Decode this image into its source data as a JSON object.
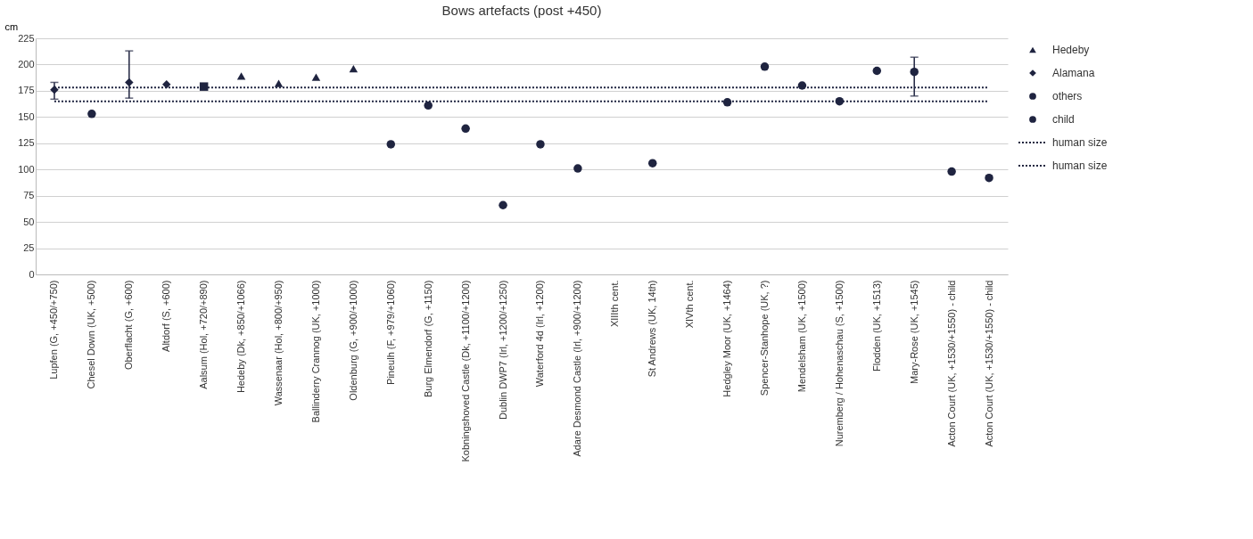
{
  "chart_data": {
    "type": "scatter",
    "title": "Bows artefacts (post +450)",
    "ylabel": "cm",
    "categories": [
      "Lupfen (G, +450/+750)",
      "Chesel Down (UK, +500)",
      "Oberflacht (G, +600)",
      "Altdorf (S, +600)",
      "Aalsum (Hol, +720/+890)",
      "Hedeby (Dk, +850/+1066)",
      "Wassenaar (Hol, +800/+950)",
      "Ballinderry Crannog (UK, +1000)",
      "Oldenburg (G, +900/+1000)",
      "Pineulh (F, +979/+1060)",
      "Burg Elmendorf (G, +1150)",
      "Kobningshoved Castle  (Dk, +1100/+1200)",
      "Dublin DWP7 (Irl, +1200/+1250)",
      "Waterford 4d (Irl, +1200)",
      "Adare Desmond Castle (Irl, +900/+1200)",
      "XIIIth cent.",
      "St Andrews (UK, 14th)",
      "XIVth cent.",
      "Hedgley Moor (UK, +1464)",
      "Spencer-Stanhope (UK, ?)",
      "Mendelsham (UK, +1500)",
      "Nuremberg / Hohenaschau (S, +1500)",
      "Flodden (UK, +1513)",
      "Mary-Rose (UK, +1545)",
      "Acton Court (UK, +1530/+1550) - child",
      "Acton Court (UK, +1530/+1550) - child"
    ],
    "series": [
      {
        "name": "Hedeby",
        "marker": "triangle",
        "color": "#1f2440",
        "values": [
          null,
          null,
          null,
          null,
          null,
          189,
          182,
          188,
          196,
          null,
          null,
          null,
          null,
          null,
          null,
          null,
          null,
          null,
          null,
          null,
          null,
          null,
          null,
          null,
          null,
          null
        ]
      },
      {
        "name": "Alamana",
        "marker": "diamond",
        "color": "#1f2440",
        "values": [
          176,
          null,
          183,
          181,
          null,
          null,
          null,
          null,
          null,
          null,
          null,
          null,
          null,
          null,
          null,
          null,
          null,
          null,
          null,
          null,
          null,
          null,
          null,
          null,
          null,
          null
        ],
        "errors": [
          [
            167,
            183
          ],
          null,
          [
            168,
            213
          ],
          null,
          null,
          null,
          null,
          null,
          null,
          null,
          null,
          null,
          null,
          null,
          null,
          null,
          null,
          null,
          null,
          null,
          null,
          null,
          null,
          null,
          null,
          null
        ]
      },
      {
        "name": "others",
        "marker": "circle",
        "color": "#1f2440",
        "values": [
          null,
          153,
          null,
          null,
          null,
          null,
          null,
          null,
          null,
          124,
          161,
          139,
          66,
          124,
          101,
          null,
          null,
          null,
          164,
          198,
          180,
          165,
          194,
          193,
          null,
          null
        ],
        "errors": [
          null,
          null,
          null,
          null,
          null,
          null,
          null,
          null,
          null,
          null,
          null,
          null,
          null,
          null,
          null,
          null,
          null,
          null,
          null,
          null,
          null,
          null,
          null,
          [
            170,
            207
          ],
          null,
          null
        ]
      },
      {
        "name": "child",
        "marker": "circle",
        "color": "#1f2440",
        "values": [
          null,
          null,
          null,
          null,
          null,
          null,
          null,
          null,
          null,
          null,
          null,
          null,
          null,
          null,
          null,
          null,
          106,
          null,
          null,
          null,
          null,
          null,
          null,
          null,
          98,
          92
        ]
      },
      {
        "marker": "square",
        "color": "#1f2440",
        "values": [
          null,
          null,
          null,
          null,
          179,
          null,
          null,
          null,
          null,
          null,
          null,
          null,
          null,
          null,
          null,
          null,
          null,
          null,
          null,
          null,
          null,
          null,
          null,
          null,
          null,
          null
        ]
      },
      {
        "name": "human size",
        "type": "line",
        "line_style": "dotted",
        "marker": "none",
        "color": "#1f2440",
        "values": [
          178,
          178,
          178,
          178,
          178,
          178,
          178,
          178,
          178,
          178,
          178,
          178,
          178,
          178,
          178,
          178,
          178,
          178,
          178,
          178,
          178,
          178,
          178,
          178,
          178,
          178
        ]
      },
      {
        "name": "human size",
        "type": "line",
        "line_style": "dotted",
        "marker": "none",
        "color": "#1f2440",
        "values": [
          165,
          165,
          165,
          165,
          165,
          165,
          165,
          165,
          165,
          165,
          165,
          165,
          165,
          165,
          165,
          165,
          165,
          165,
          165,
          165,
          165,
          165,
          165,
          165,
          165,
          165
        ]
      }
    ],
    "ylim": [
      0,
      225
    ],
    "yticks": [
      0,
      25,
      50,
      75,
      100,
      125,
      150,
      175,
      200,
      225
    ],
    "grid": "y",
    "legend": "right"
  }
}
